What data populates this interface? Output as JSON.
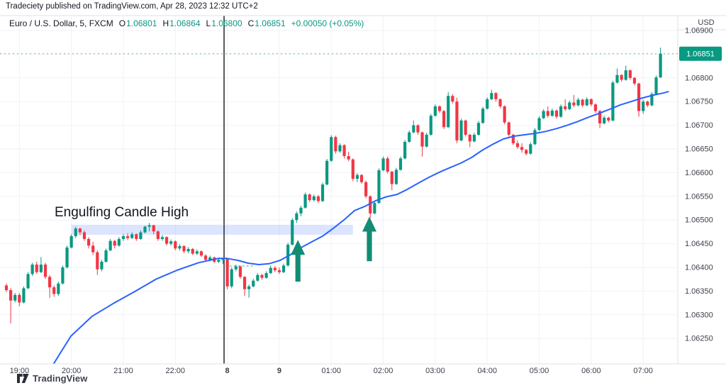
{
  "attribution": "Tradeciety published on TradingView.com, Apr 28, 2023 12:32 UTC+2",
  "header": {
    "symbol": "Euro / U.S. Dollar, 5, FXCM",
    "ohlc": [
      {
        "label": "O",
        "value": "1.06801"
      },
      {
        "label": "H",
        "value": "1.06864"
      },
      {
        "label": "L",
        "value": "1.06800"
      },
      {
        "label": "C",
        "value": "1.06851"
      }
    ],
    "change": "+0.00050 (+0.05%)"
  },
  "annotation": {
    "text": "Engulfing Candle High"
  },
  "price_axis": {
    "currency": "USD",
    "last_price": "1.06851",
    "labels": [
      "1.06900",
      "1.06800",
      "1.06750",
      "1.06700",
      "1.06650",
      "1.06600",
      "1.06550",
      "1.06500",
      "1.06450",
      "1.06400",
      "1.06350",
      "1.06300",
      "1.06250"
    ]
  },
  "watermark": "TradingView",
  "colors": {
    "up": "#089981",
    "down": "#f23645",
    "ma_line": "#2962ff",
    "band": "rgba(41,98,255,0.17)",
    "arrow": "#128c72",
    "session_line": "#15171c",
    "grid": "#f0f2f7",
    "axis_border": "#dde1ea",
    "axis_text": "#3c404b",
    "badge_bg": "#089981",
    "badge_text": "#ffffff",
    "price_line": "#089981"
  },
  "chart_data": {
    "type": "candlestick",
    "title": "Euro / U.S. Dollar, 5, FXCM",
    "interval_minutes": 5,
    "price_base": 1.06,
    "pip_unit": 0.0001,
    "y_axis": {
      "min": 1.0625,
      "max": 1.069,
      "step": 0.0005,
      "grid": true
    },
    "x_ticks": [
      {
        "index": 3,
        "text": "19:00",
        "bold": false
      },
      {
        "index": 15,
        "text": "20:00",
        "bold": false
      },
      {
        "index": 27,
        "text": "21:00",
        "bold": false
      },
      {
        "index": 39,
        "text": "22:00",
        "bold": false
      },
      {
        "index": 51,
        "text": "8",
        "bold": true
      },
      {
        "index": 63,
        "text": "9",
        "bold": true
      },
      {
        "index": 75,
        "text": "01:00",
        "bold": false
      },
      {
        "index": 87,
        "text": "02:00",
        "bold": false
      },
      {
        "index": 99,
        "text": "03:00",
        "bold": false
      },
      {
        "index": 111,
        "text": "04:00",
        "bold": false
      },
      {
        "index": 123,
        "text": "05:00",
        "bold": false
      },
      {
        "index": 135,
        "text": "06:00",
        "bold": false
      },
      {
        "index": 147,
        "text": "07:00",
        "bold": false
      }
    ],
    "candles_ohlc_pips": [
      [
        36.2,
        36.6,
        34.8,
        35.2
      ],
      [
        35.2,
        35.6,
        28.2,
        33.0
      ],
      [
        33.0,
        34.6,
        32.6,
        34.2
      ],
      [
        34.2,
        34.6,
        31.8,
        32.6
      ],
      [
        32.6,
        36.0,
        32.4,
        35.6
      ],
      [
        35.6,
        39.0,
        35.4,
        38.6
      ],
      [
        38.6,
        41.0,
        38.2,
        40.6
      ],
      [
        40.6,
        41.2,
        38.6,
        39.0
      ],
      [
        39.0,
        42.2,
        38.8,
        40.6
      ],
      [
        40.6,
        41.0,
        37.6,
        38.0
      ],
      [
        38.0,
        38.4,
        33.6,
        35.8
      ],
      [
        35.8,
        36.2,
        33.8,
        34.4
      ],
      [
        34.4,
        37.0,
        34.0,
        36.6
      ],
      [
        36.6,
        40.4,
        36.4,
        40.0
      ],
      [
        40.0,
        44.6,
        39.8,
        44.2
      ],
      [
        44.2,
        47.0,
        44.0,
        46.6
      ],
      [
        46.6,
        48.6,
        46.2,
        48.2
      ],
      [
        48.2,
        48.4,
        46.8,
        47.4
      ],
      [
        47.4,
        47.8,
        45.6,
        46.0
      ],
      [
        46.0,
        46.4,
        44.0,
        44.6
      ],
      [
        44.6,
        45.4,
        42.6,
        43.2
      ],
      [
        43.2,
        43.6,
        38.4,
        39.6
      ],
      [
        39.6,
        41.6,
        39.2,
        41.2
      ],
      [
        41.2,
        44.0,
        41.0,
        43.6
      ],
      [
        43.6,
        46.0,
        43.4,
        45.6
      ],
      [
        45.6,
        45.8,
        44.0,
        44.6
      ],
      [
        44.6,
        46.4,
        44.4,
        46.0
      ],
      [
        46.0,
        47.0,
        45.6,
        46.6
      ],
      [
        46.6,
        47.2,
        45.8,
        46.2
      ],
      [
        46.2,
        47.4,
        46.0,
        47.0
      ],
      [
        47.0,
        47.2,
        45.6,
        46.0
      ],
      [
        46.0,
        47.8,
        45.8,
        47.4
      ],
      [
        47.4,
        48.8,
        47.2,
        48.6
      ],
      [
        48.6,
        49.4,
        47.6,
        48.9
      ],
      [
        48.9,
        49.0,
        47.0,
        47.6
      ],
      [
        47.6,
        47.8,
        45.6,
        46.0
      ],
      [
        46.0,
        46.8,
        45.6,
        46.4
      ],
      [
        46.4,
        46.6,
        44.6,
        45.0
      ],
      [
        45.0,
        45.9,
        44.6,
        45.5
      ],
      [
        45.5,
        45.7,
        43.6,
        44.0
      ],
      [
        44.0,
        44.9,
        43.6,
        44.5
      ],
      [
        44.5,
        44.7,
        43.0,
        43.4
      ],
      [
        43.4,
        44.3,
        43.0,
        43.9
      ],
      [
        43.9,
        44.1,
        42.6,
        42.9
      ],
      [
        42.9,
        43.8,
        42.6,
        43.4
      ],
      [
        43.4,
        43.6,
        42.2,
        42.5
      ],
      [
        42.5,
        42.8,
        41.2,
        41.6
      ],
      [
        41.6,
        42.5,
        41.3,
        42.1
      ],
      [
        42.1,
        42.3,
        40.9,
        41.2
      ],
      [
        41.2,
        42.0,
        40.9,
        41.6
      ],
      [
        41.6,
        41.9,
        40.7,
        41.8
      ],
      [
        41.8,
        42.0,
        35.4,
        36.0
      ],
      [
        36.0,
        40.0,
        35.6,
        39.6
      ],
      [
        39.6,
        40.6,
        39.2,
        40.2
      ],
      [
        40.2,
        40.4,
        37.6,
        38.0
      ],
      [
        38.0,
        38.2,
        34.0,
        35.4
      ],
      [
        35.4,
        36.4,
        33.6,
        36.0
      ],
      [
        36.0,
        37.6,
        35.8,
        37.2
      ],
      [
        37.2,
        38.8,
        37.0,
        38.4
      ],
      [
        38.4,
        38.6,
        37.4,
        37.8
      ],
      [
        37.8,
        39.2,
        37.6,
        38.8
      ],
      [
        38.8,
        40.4,
        38.6,
        39.9
      ],
      [
        39.9,
        40.3,
        39.0,
        39.4
      ],
      [
        39.4,
        40.0,
        38.6,
        39.0
      ],
      [
        39.0,
        40.8,
        38.8,
        40.4
      ],
      [
        40.4,
        45.2,
        40.2,
        44.8
      ],
      [
        44.8,
        50.4,
        44.6,
        50.0
      ],
      [
        50.0,
        51.8,
        49.4,
        51.4
      ],
      [
        51.4,
        53.0,
        50.8,
        52.6
      ],
      [
        52.6,
        55.8,
        52.4,
        55.4
      ],
      [
        55.4,
        55.6,
        53.8,
        54.2
      ],
      [
        54.2,
        55.4,
        53.9,
        55.0
      ],
      [
        55.0,
        55.3,
        53.6,
        54.0
      ],
      [
        54.0,
        57.9,
        53.8,
        57.5
      ],
      [
        57.5,
        62.9,
        57.3,
        62.5
      ],
      [
        62.5,
        67.9,
        62.3,
        67.5
      ],
      [
        67.5,
        67.8,
        64.0,
        64.5
      ],
      [
        64.5,
        66.2,
        64.2,
        65.8
      ],
      [
        65.8,
        66.0,
        63.0,
        63.5
      ],
      [
        63.5,
        64.4,
        62.4,
        62.8
      ],
      [
        62.8,
        63.0,
        58.2,
        58.7
      ],
      [
        58.7,
        59.9,
        58.0,
        59.5
      ],
      [
        59.5,
        59.7,
        57.6,
        58.0
      ],
      [
        58.0,
        58.3,
        54.6,
        55.0
      ],
      [
        55.0,
        55.2,
        50.4,
        51.4
      ],
      [
        51.4,
        54.0,
        51.2,
        53.6
      ],
      [
        53.6,
        60.9,
        53.4,
        60.5
      ],
      [
        60.5,
        63.4,
        60.3,
        63.0
      ],
      [
        63.0,
        63.4,
        59.8,
        60.2
      ],
      [
        60.2,
        60.4,
        56.3,
        57.6
      ],
      [
        57.6,
        61.0,
        57.4,
        60.6
      ],
      [
        60.6,
        63.4,
        60.4,
        63.0
      ],
      [
        63.0,
        66.9,
        62.8,
        66.5
      ],
      [
        66.5,
        68.9,
        66.3,
        68.5
      ],
      [
        68.5,
        71.0,
        68.3,
        70.0
      ],
      [
        70.0,
        70.2,
        68.0,
        68.5
      ],
      [
        68.5,
        68.7,
        63.4,
        65.5
      ],
      [
        65.5,
        68.4,
        65.3,
        68.0
      ],
      [
        68.0,
        72.4,
        67.8,
        72.0
      ],
      [
        72.0,
        74.4,
        71.8,
        74.0
      ],
      [
        74.0,
        74.2,
        72.6,
        73.0
      ],
      [
        73.0,
        73.2,
        69.2,
        69.6
      ],
      [
        69.6,
        77.0,
        69.4,
        76.2
      ],
      [
        76.2,
        76.6,
        74.6,
        75.0
      ],
      [
        75.0,
        75.8,
        66.2,
        66.8
      ],
      [
        66.8,
        71.4,
        66.6,
        71.0
      ],
      [
        71.0,
        71.2,
        67.6,
        68.0
      ],
      [
        68.0,
        68.2,
        65.4,
        66.6
      ],
      [
        66.6,
        68.4,
        66.4,
        68.0
      ],
      [
        68.0,
        70.9,
        67.8,
        70.5
      ],
      [
        70.5,
        73.9,
        70.3,
        73.5
      ],
      [
        73.5,
        75.9,
        73.3,
        75.5
      ],
      [
        75.5,
        77.5,
        75.3,
        76.8
      ],
      [
        76.8,
        77.0,
        75.0,
        75.5
      ],
      [
        75.5,
        75.7,
        73.6,
        74.0
      ],
      [
        74.0,
        74.2,
        70.2,
        70.6
      ],
      [
        70.6,
        70.8,
        67.6,
        68.0
      ],
      [
        68.0,
        68.2,
        65.8,
        66.2
      ],
      [
        66.2,
        66.8,
        65.0,
        65.4
      ],
      [
        65.4,
        66.2,
        64.2,
        64.8
      ],
      [
        64.8,
        65.0,
        63.6,
        64.0
      ],
      [
        64.0,
        66.4,
        63.8,
        66.0
      ],
      [
        66.0,
        69.4,
        65.8,
        69.0
      ],
      [
        69.0,
        71.9,
        68.8,
        71.5
      ],
      [
        71.5,
        73.4,
        71.3,
        73.0
      ],
      [
        73.0,
        74.0,
        71.6,
        72.0
      ],
      [
        72.0,
        73.5,
        71.8,
        73.1
      ],
      [
        73.1,
        73.3,
        71.4,
        71.8
      ],
      [
        71.8,
        74.4,
        71.6,
        74.0
      ],
      [
        74.0,
        75.5,
        73.0,
        73.4
      ],
      [
        73.4,
        75.2,
        73.2,
        74.8
      ],
      [
        74.8,
        76.4,
        73.8,
        74.2
      ],
      [
        74.2,
        75.8,
        74.0,
        75.4
      ],
      [
        75.4,
        75.6,
        73.8,
        74.2
      ],
      [
        74.2,
        75.9,
        74.0,
        75.5
      ],
      [
        75.5,
        75.7,
        74.0,
        74.4
      ],
      [
        74.4,
        74.6,
        72.6,
        73.0
      ],
      [
        73.0,
        73.2,
        69.4,
        70.4
      ],
      [
        70.4,
        72.0,
        70.2,
        71.6
      ],
      [
        71.6,
        71.8,
        70.6,
        71.0
      ],
      [
        71.0,
        79.4,
        70.8,
        79.0
      ],
      [
        79.0,
        82.0,
        78.8,
        80.6
      ],
      [
        80.6,
        80.8,
        79.2,
        79.6
      ],
      [
        79.6,
        82.6,
        79.4,
        81.6
      ],
      [
        81.6,
        81.8,
        79.6,
        80.0
      ],
      [
        80.0,
        80.2,
        78.4,
        78.8
      ],
      [
        78.8,
        79.0,
        71.8,
        73.0
      ],
      [
        73.0,
        75.4,
        72.4,
        75.0
      ],
      [
        75.0,
        75.2,
        73.8,
        74.2
      ],
      [
        74.2,
        77.0,
        74.0,
        76.6
      ],
      [
        76.6,
        80.5,
        76.4,
        80.1
      ],
      [
        80.1,
        86.4,
        80.0,
        85.1
      ]
    ],
    "ma_line_points": [
      [
        10.8,
        19.5
      ],
      [
        14.9,
        25.5
      ],
      [
        19.8,
        29.7
      ],
      [
        24.7,
        32.4
      ],
      [
        29.6,
        34.9
      ],
      [
        34.5,
        37.5
      ],
      [
        39.4,
        39.4
      ],
      [
        44.4,
        41.0
      ],
      [
        48.9,
        41.9
      ],
      [
        50.9,
        41.9
      ],
      [
        53.4,
        41.5
      ],
      [
        55.8,
        40.9
      ],
      [
        58.3,
        40.6
      ],
      [
        60.7,
        40.8
      ],
      [
        63.2,
        41.5
      ],
      [
        65.6,
        42.7
      ],
      [
        68.1,
        44.2
      ],
      [
        70.5,
        45.4
      ],
      [
        73.0,
        46.6
      ],
      [
        75.4,
        48.2
      ],
      [
        77.9,
        50.0
      ],
      [
        80.4,
        52.0
      ],
      [
        82.8,
        52.9
      ],
      [
        85.3,
        54.1
      ],
      [
        87.7,
        54.9
      ],
      [
        90.2,
        55.4
      ],
      [
        92.6,
        56.5
      ],
      [
        95.1,
        57.8
      ],
      [
        97.5,
        59.0
      ],
      [
        100,
        60.1
      ],
      [
        102.5,
        61.1
      ],
      [
        104.9,
        62.0
      ],
      [
        107.4,
        63.2
      ],
      [
        109.8,
        64.7
      ],
      [
        112.3,
        66.0
      ],
      [
        114.7,
        67.1
      ],
      [
        117.2,
        67.7
      ],
      [
        119.6,
        68.0
      ],
      [
        122.1,
        68.3
      ],
      [
        124.5,
        68.7
      ],
      [
        127,
        69.3
      ],
      [
        129.5,
        70.0
      ],
      [
        131.9,
        70.8
      ],
      [
        134.4,
        71.7
      ],
      [
        136.8,
        72.5
      ],
      [
        139.3,
        73.4
      ],
      [
        141.7,
        74.3
      ],
      [
        144.2,
        75.0
      ],
      [
        146.6,
        75.7
      ],
      [
        149.1,
        76.3
      ],
      [
        151.6,
        76.8
      ],
      [
        152.8,
        77.1
      ]
    ],
    "highlight_band": {
      "from_index": 15,
      "to_index": 80,
      "price_top_pips": 49.0,
      "price_bottom_pips": 46.9
    },
    "session_break_index": 50.25,
    "dashed_level_segment": {
      "from_index": 51.5,
      "to_index": 57,
      "price_pips": 40.3
    },
    "arrows": [
      {
        "index": 67.3,
        "tip_pips": 45.8,
        "base_pips": 37.0
      },
      {
        "index": 83.8,
        "tip_pips": 50.7,
        "base_pips": 41.3
      }
    ],
    "last_price_pips": 85.1
  }
}
